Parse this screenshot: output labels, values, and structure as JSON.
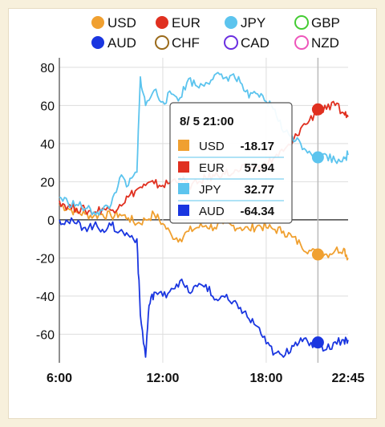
{
  "chart_data": {
    "type": "line",
    "title": "",
    "xlabel": "",
    "ylabel": "",
    "x_ticks": [
      "6:00",
      "12:00",
      "18:00",
      "22:45"
    ],
    "x_range_hours": [
      6.0,
      22.75
    ],
    "y_ticks": [
      80,
      60,
      40,
      20,
      0,
      -20,
      -40,
      -60
    ],
    "ylim": [
      -75,
      85
    ],
    "grid": "vertical and horizontal, light gray",
    "legend": {
      "position": "top",
      "items": [
        {
          "label": "USD",
          "color": "#f0a030",
          "style": "filled"
        },
        {
          "label": "EUR",
          "color": "#e03020",
          "style": "filled"
        },
        {
          "label": "JPY",
          "color": "#5cc4ee",
          "style": "filled"
        },
        {
          "label": "GBP",
          "color": "#44cc33",
          "style": "outline"
        },
        {
          "label": "AUD",
          "color": "#1a36e0",
          "style": "filled"
        },
        {
          "label": "CHF",
          "color": "#9a6a1a",
          "style": "outline"
        },
        {
          "label": "CAD",
          "color": "#6a2ee0",
          "style": "outline"
        },
        {
          "label": "NZD",
          "color": "#ee55bb",
          "style": "outline"
        }
      ]
    },
    "series": [
      {
        "name": "USD",
        "color": "#f0a030",
        "points": [
          [
            6.0,
            8
          ],
          [
            6.5,
            6
          ],
          [
            7.0,
            4
          ],
          [
            7.5,
            3
          ],
          [
            8.0,
            2
          ],
          [
            8.5,
            3
          ],
          [
            9.0,
            2
          ],
          [
            9.5,
            3
          ],
          [
            10.0,
            1
          ],
          [
            10.5,
            -2
          ],
          [
            11.0,
            0
          ],
          [
            11.5,
            3
          ],
          [
            12.0,
            -2
          ],
          [
            12.5,
            -8
          ],
          [
            13.0,
            -10
          ],
          [
            13.5,
            -6
          ],
          [
            14.0,
            -4
          ],
          [
            14.5,
            -3
          ],
          [
            15.0,
            -4
          ],
          [
            15.5,
            -2
          ],
          [
            16.0,
            -3
          ],
          [
            16.5,
            -4
          ],
          [
            17.0,
            -5
          ],
          [
            17.5,
            -3
          ],
          [
            18.0,
            -4
          ],
          [
            18.5,
            -5
          ],
          [
            19.0,
            -6
          ],
          [
            19.5,
            -9
          ],
          [
            20.0,
            -13
          ],
          [
            20.5,
            -16
          ],
          [
            21.0,
            -18.17
          ],
          [
            21.5,
            -18
          ],
          [
            22.0,
            -16
          ],
          [
            22.5,
            -15
          ],
          [
            22.75,
            -20
          ]
        ]
      },
      {
        "name": "EUR",
        "color": "#e03020",
        "points": [
          [
            6.0,
            10
          ],
          [
            6.5,
            7
          ],
          [
            7.0,
            6
          ],
          [
            7.5,
            5
          ],
          [
            8.0,
            4
          ],
          [
            8.5,
            6
          ],
          [
            9.0,
            5
          ],
          [
            9.5,
            8
          ],
          [
            10.0,
            12
          ],
          [
            10.5,
            16
          ],
          [
            11.0,
            18
          ],
          [
            11.5,
            19
          ],
          [
            12.0,
            18
          ],
          [
            12.5,
            20
          ],
          [
            13.0,
            22
          ],
          [
            13.5,
            18
          ],
          [
            14.0,
            19
          ],
          [
            14.5,
            22
          ],
          [
            15.0,
            23
          ],
          [
            15.5,
            25
          ],
          [
            16.0,
            24
          ],
          [
            16.5,
            26
          ],
          [
            17.0,
            28
          ],
          [
            17.5,
            27
          ],
          [
            18.0,
            29
          ],
          [
            18.5,
            33
          ],
          [
            19.0,
            36
          ],
          [
            19.5,
            40
          ],
          [
            20.0,
            48
          ],
          [
            20.5,
            52
          ],
          [
            21.0,
            57.94
          ],
          [
            21.5,
            58
          ],
          [
            22.0,
            60
          ],
          [
            22.5,
            56
          ],
          [
            22.75,
            54
          ]
        ]
      },
      {
        "name": "JPY",
        "color": "#5cc4ee",
        "points": [
          [
            6.0,
            12
          ],
          [
            6.5,
            9
          ],
          [
            7.0,
            8
          ],
          [
            7.5,
            6
          ],
          [
            8.0,
            4
          ],
          [
            8.5,
            5
          ],
          [
            9.0,
            8
          ],
          [
            9.5,
            22
          ],
          [
            10.0,
            18
          ],
          [
            10.5,
            25
          ],
          [
            10.7,
            75
          ],
          [
            11.0,
            60
          ],
          [
            11.5,
            68
          ],
          [
            12.0,
            62
          ],
          [
            12.5,
            66
          ],
          [
            13.0,
            64
          ],
          [
            13.5,
            74
          ],
          [
            14.0,
            70
          ],
          [
            14.5,
            72
          ],
          [
            15.0,
            76
          ],
          [
            15.5,
            74
          ],
          [
            16.0,
            76
          ],
          [
            16.5,
            72
          ],
          [
            17.0,
            64
          ],
          [
            17.5,
            66
          ],
          [
            18.0,
            62
          ],
          [
            18.5,
            58
          ],
          [
            19.0,
            46
          ],
          [
            19.5,
            44
          ],
          [
            20.0,
            40
          ],
          [
            20.5,
            36
          ],
          [
            21.0,
            32.77
          ],
          [
            21.5,
            34
          ],
          [
            22.0,
            31
          ],
          [
            22.5,
            33
          ],
          [
            22.75,
            34
          ]
        ]
      },
      {
        "name": "AUD",
        "color": "#1a36e0",
        "points": [
          [
            6.0,
            0
          ],
          [
            6.5,
            -1
          ],
          [
            7.0,
            -2
          ],
          [
            7.5,
            -4
          ],
          [
            8.0,
            -3
          ],
          [
            8.5,
            -5
          ],
          [
            9.0,
            -3
          ],
          [
            9.5,
            -6
          ],
          [
            10.0,
            -8
          ],
          [
            10.5,
            -10
          ],
          [
            10.7,
            -50
          ],
          [
            11.0,
            -72
          ],
          [
            11.2,
            -45
          ],
          [
            11.5,
            -38
          ],
          [
            12.0,
            -40
          ],
          [
            12.5,
            -36
          ],
          [
            13.0,
            -32
          ],
          [
            13.5,
            -38
          ],
          [
            14.0,
            -35
          ],
          [
            14.5,
            -34
          ],
          [
            15.0,
            -42
          ],
          [
            15.5,
            -40
          ],
          [
            16.0,
            -44
          ],
          [
            16.5,
            -46
          ],
          [
            17.0,
            -52
          ],
          [
            17.5,
            -56
          ],
          [
            18.0,
            -65
          ],
          [
            18.5,
            -70
          ],
          [
            19.0,
            -72
          ],
          [
            19.5,
            -66
          ],
          [
            20.0,
            -62
          ],
          [
            20.5,
            -66
          ],
          [
            21.0,
            -64.34
          ],
          [
            21.5,
            -68
          ],
          [
            22.0,
            -64
          ],
          [
            22.5,
            -63
          ],
          [
            22.75,
            -63
          ]
        ]
      }
    ],
    "cursor": {
      "x": 21.0,
      "label": "8/ 5 21:00"
    }
  },
  "tooltip": {
    "title": "8/ 5 21:00",
    "rows": [
      {
        "label": "USD",
        "value": "-18.17",
        "color": "#f0a030"
      },
      {
        "label": "EUR",
        "value": "57.94",
        "color": "#e03020"
      },
      {
        "label": "JPY",
        "value": "32.77",
        "color": "#5cc4ee"
      },
      {
        "label": "AUD",
        "value": "-64.34",
        "color": "#1a36e0"
      }
    ]
  }
}
